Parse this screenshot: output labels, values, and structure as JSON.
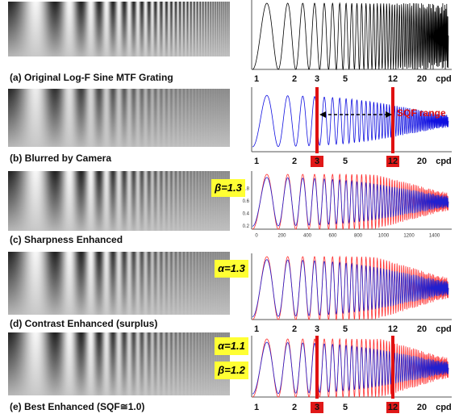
{
  "panels": [
    {
      "caption": "(a) Original Log-F Sine MTF Grating",
      "axis_labels": [
        "1",
        "2",
        "3",
        "5",
        "12",
        "20",
        "cpd"
      ]
    },
    {
      "caption": "(b) Blurred by Camera",
      "axis_labels": [
        "1",
        "2",
        "3",
        "5",
        "12",
        "20",
        "cpd"
      ],
      "annotations": [
        "SQF range"
      ]
    },
    {
      "caption": "(c) Sharpness Enhanced",
      "annotations": [
        "β=1.3"
      ],
      "x_ticks": [
        "0",
        "200",
        "400",
        "600",
        "800",
        "1000",
        "1200",
        "1400"
      ],
      "y_ticks": [
        "0.8",
        "0.6",
        "0.4",
        "0.2"
      ]
    },
    {
      "caption": "(d) Contrast Enhanced (surplus)",
      "axis_labels": [
        "1",
        "2",
        "3",
        "5",
        "12",
        "20",
        "cpd"
      ],
      "annotations": [
        "α=1.3"
      ]
    },
    {
      "caption": "(e) Best Enhanced (SQF≅1.0)",
      "axis_labels": [
        "1",
        "2",
        "3",
        "5",
        "12",
        "20",
        "cpd"
      ],
      "annotations": [
        "α=1.1",
        "β=1.2"
      ]
    }
  ]
}
